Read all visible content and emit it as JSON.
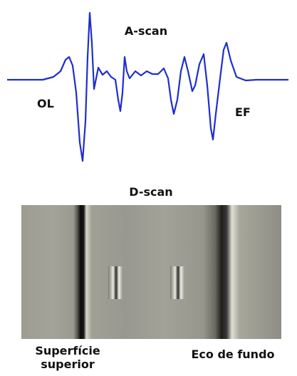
{
  "a_scan": {
    "title": "A-scan",
    "left_label": "OL",
    "right_label": "EF"
  },
  "d_scan": {
    "title": "D-scan",
    "left_label": [
      "Superfície",
      "superior"
    ],
    "right_label": "Eco de fundo"
  }
}
